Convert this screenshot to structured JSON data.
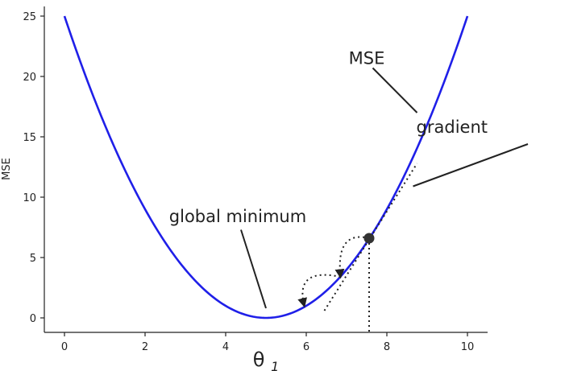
{
  "chart_data": {
    "type": "line",
    "title": "",
    "xlabel": "θ",
    "xlabel_subscript": "1",
    "ylabel": "MSE",
    "xlim": [
      -0.5,
      10.5
    ],
    "ylim": [
      -1.2,
      25.8
    ],
    "x_ticks": [
      0,
      2,
      4,
      6,
      8,
      10
    ],
    "y_ticks": [
      0,
      5,
      10,
      15,
      20,
      25
    ],
    "grid": false,
    "legend": "none",
    "series": [
      {
        "formula": "(x - 5)^2",
        "x_range": [
          0,
          10
        ],
        "color": "#1f1fe8"
      }
    ],
    "current_point": {
      "x": 7.56,
      "y": 6.6
    },
    "gradient_line": {
      "from": [
        6.45,
        0.6
      ],
      "to": [
        8.75,
        12.8
      ]
    },
    "step_arrows": [
      {
        "from": [
          7.56,
          6.6
        ],
        "to": [
          6.85,
          3.4
        ]
      },
      {
        "from": [
          6.85,
          3.4
        ],
        "to": [
          5.95,
          1.0
        ]
      }
    ],
    "annotations": [
      {
        "text": "MSE",
        "text_at": [
          7.5,
          21.5
        ],
        "line_from": [
          7.65,
          20.7
        ],
        "line_to": [
          8.75,
          17.0
        ]
      },
      {
        "text": "gradient",
        "text_at": [
          10.5,
          15.8
        ],
        "line_from": [
          11.5,
          14.4
        ],
        "line_to": [
          8.65,
          10.9
        ]
      },
      {
        "text": "global minimum",
        "text_at": [
          4.3,
          8.4
        ],
        "line_from": [
          4.38,
          7.3
        ],
        "line_to": [
          5.0,
          0.8
        ]
      }
    ],
    "colors": {
      "curve": "#1f1fe8",
      "ink": "#222222",
      "point": "#333333"
    }
  }
}
